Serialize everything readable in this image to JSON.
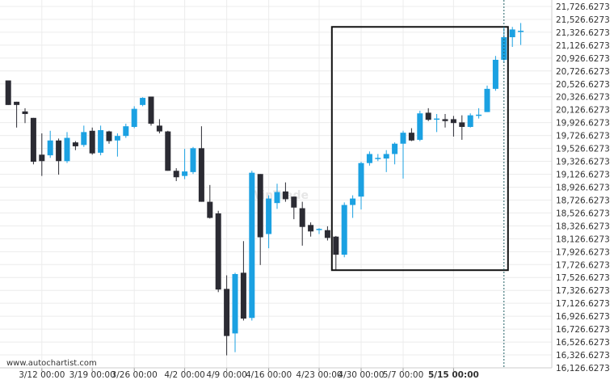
{
  "chart_data": {
    "type": "candlestick",
    "title": "",
    "xlabel": "",
    "ylabel": "",
    "ylim": [
      16126.6273,
      21826.6273
    ],
    "y_ticks": [
      "21,726.6273",
      "21,526.6273",
      "21,326.6273",
      "21,126.6273",
      "20,926.6273",
      "20,726.6273",
      "20,526.6273",
      "20,326.6273",
      "20,126.6273",
      "19,926.6273",
      "19,726.6273",
      "19,526.6273",
      "19,326.6273",
      "19,126.6273",
      "18,926.6273",
      "18,726.6273",
      "18,526.6273",
      "18,326.6273",
      "18,126.6273",
      "17,926.6273",
      "17,726.6273",
      "17,526.6273",
      "17,326.6273",
      "17,126.6273",
      "16,926.6273",
      "16,726.6273",
      "16,526.6273",
      "16,326.6273",
      "16,126.6273"
    ],
    "x_ticks": [
      {
        "label": "3/12 00:00",
        "index": 4
      },
      {
        "label": "3/19 00:00",
        "index": 10
      },
      {
        "label": "3/26 00:00",
        "index": 15
      },
      {
        "label": "4/2 00:00",
        "index": 21
      },
      {
        "label": "4/9 00:00",
        "index": 26
      },
      {
        "label": "4/16 00:00",
        "index": 31
      },
      {
        "label": "4/23 00:00",
        "index": 37
      },
      {
        "label": "4/30 00:00",
        "index": 42
      },
      {
        "label": "5/7 00:00",
        "index": 47
      },
      {
        "label": "5/15 00:00",
        "index": 53,
        "bold": true
      }
    ],
    "candles": [
      {
        "o": 20580,
        "h": 20580,
        "l": 20200,
        "c": 20200
      },
      {
        "o": 20250,
        "h": 20250,
        "l": 19850,
        "c": 20200
      },
      {
        "o": 20100,
        "h": 20150,
        "l": 19920,
        "c": 20060
      },
      {
        "o": 20000,
        "h": 20000,
        "l": 19280,
        "c": 19320
      },
      {
        "o": 19430,
        "h": 19760,
        "l": 19100,
        "c": 19330
      },
      {
        "o": 19420,
        "h": 19800,
        "l": 19380,
        "c": 19650
      },
      {
        "o": 19650,
        "h": 19680,
        "l": 19120,
        "c": 19330
      },
      {
        "o": 19330,
        "h": 19780,
        "l": 19300,
        "c": 19690
      },
      {
        "o": 19620,
        "h": 19640,
        "l": 19500,
        "c": 19560
      },
      {
        "o": 19580,
        "h": 19880,
        "l": 19550,
        "c": 19780
      },
      {
        "o": 19800,
        "h": 19850,
        "l": 19430,
        "c": 19450
      },
      {
        "o": 19460,
        "h": 19880,
        "l": 19420,
        "c": 19810
      },
      {
        "o": 19790,
        "h": 19800,
        "l": 19600,
        "c": 19640
      },
      {
        "o": 19650,
        "h": 19760,
        "l": 19400,
        "c": 19720
      },
      {
        "o": 19720,
        "h": 19910,
        "l": 19690,
        "c": 19870
      },
      {
        "o": 19860,
        "h": 20180,
        "l": 19840,
        "c": 20140
      },
      {
        "o": 20200,
        "h": 20320,
        "l": 20180,
        "c": 20310
      },
      {
        "o": 20330,
        "h": 20330,
        "l": 19880,
        "c": 19910
      },
      {
        "o": 19880,
        "h": 19980,
        "l": 19760,
        "c": 19790
      },
      {
        "o": 19790,
        "h": 19800,
        "l": 19180,
        "c": 19180
      },
      {
        "o": 19180,
        "h": 19220,
        "l": 19020,
        "c": 19080
      },
      {
        "o": 19100,
        "h": 19520,
        "l": 19050,
        "c": 19170
      },
      {
        "o": 19160,
        "h": 19550,
        "l": 19130,
        "c": 19530
      },
      {
        "o": 19530,
        "h": 19870,
        "l": 18700,
        "c": 18700
      },
      {
        "o": 18700,
        "h": 18960,
        "l": 18440,
        "c": 18450
      },
      {
        "o": 18520,
        "h": 18560,
        "l": 17300,
        "c": 17340
      },
      {
        "o": 17350,
        "h": 17560,
        "l": 16320,
        "c": 16620
      },
      {
        "o": 16660,
        "h": 17600,
        "l": 16370,
        "c": 17580
      },
      {
        "o": 17600,
        "h": 18090,
        "l": 16860,
        "c": 16890
      },
      {
        "o": 16900,
        "h": 19180,
        "l": 16860,
        "c": 19150
      },
      {
        "o": 19130,
        "h": 19130,
        "l": 17720,
        "c": 18150
      },
      {
        "o": 18200,
        "h": 18800,
        "l": 17980,
        "c": 18750
      },
      {
        "o": 18680,
        "h": 18980,
        "l": 18590,
        "c": 18850
      },
      {
        "o": 18860,
        "h": 19000,
        "l": 18700,
        "c": 18740
      },
      {
        "o": 18780,
        "h": 18780,
        "l": 18430,
        "c": 18610
      },
      {
        "o": 18600,
        "h": 18700,
        "l": 18020,
        "c": 18310
      },
      {
        "o": 18340,
        "h": 18380,
        "l": 18160,
        "c": 18240
      },
      {
        "o": 18280,
        "h": 18290,
        "l": 18200,
        "c": 18280
      },
      {
        "o": 18260,
        "h": 18320,
        "l": 18100,
        "c": 18140
      },
      {
        "o": 18160,
        "h": 18170,
        "l": 17640,
        "c": 17880
      },
      {
        "o": 17880,
        "h": 18690,
        "l": 17840,
        "c": 18650
      },
      {
        "o": 18650,
        "h": 18800,
        "l": 18450,
        "c": 18750
      },
      {
        "o": 18780,
        "h": 19320,
        "l": 18580,
        "c": 19300
      },
      {
        "o": 19300,
        "h": 19480,
        "l": 19260,
        "c": 19440
      },
      {
        "o": 19380,
        "h": 19440,
        "l": 19330,
        "c": 19380
      },
      {
        "o": 19370,
        "h": 19500,
        "l": 19160,
        "c": 19440
      },
      {
        "o": 19440,
        "h": 19620,
        "l": 19280,
        "c": 19600
      },
      {
        "o": 19600,
        "h": 19800,
        "l": 19060,
        "c": 19770
      },
      {
        "o": 19770,
        "h": 19840,
        "l": 19640,
        "c": 19650
      },
      {
        "o": 19660,
        "h": 20110,
        "l": 19640,
        "c": 20070
      },
      {
        "o": 20080,
        "h": 20150,
        "l": 19950,
        "c": 19970
      },
      {
        "o": 19990,
        "h": 20060,
        "l": 19780,
        "c": 19990
      },
      {
        "o": 19980,
        "h": 20060,
        "l": 19850,
        "c": 19950
      },
      {
        "o": 19980,
        "h": 20030,
        "l": 19710,
        "c": 19920
      },
      {
        "o": 19930,
        "h": 20040,
        "l": 19660,
        "c": 19860
      },
      {
        "o": 19860,
        "h": 20070,
        "l": 19850,
        "c": 20040
      },
      {
        "o": 20050,
        "h": 20150,
        "l": 19990,
        "c": 20050
      },
      {
        "o": 20090,
        "h": 20500,
        "l": 20090,
        "c": 20450
      },
      {
        "o": 20450,
        "h": 20960,
        "l": 20420,
        "c": 20900
      },
      {
        "o": 20900,
        "h": 21400,
        "l": 20850,
        "c": 21250
      },
      {
        "o": 21250,
        "h": 21410,
        "l": 21100,
        "c": 21370
      },
      {
        "o": 21340,
        "h": 21470,
        "l": 21130,
        "c": 21350
      }
    ],
    "pattern_box": {
      "start_index": 39,
      "end_index": 59,
      "top": 21410,
      "bottom": 17640
    },
    "current_marker_index": 59,
    "watermark": "WinTrade",
    "credit": "www.autochartist.com",
    "colors": {
      "bull": "#1ba1e2",
      "bear": "#2b2b33",
      "grid": "#ececec",
      "box": "#111111",
      "current_line": "#1f5f63"
    }
  }
}
